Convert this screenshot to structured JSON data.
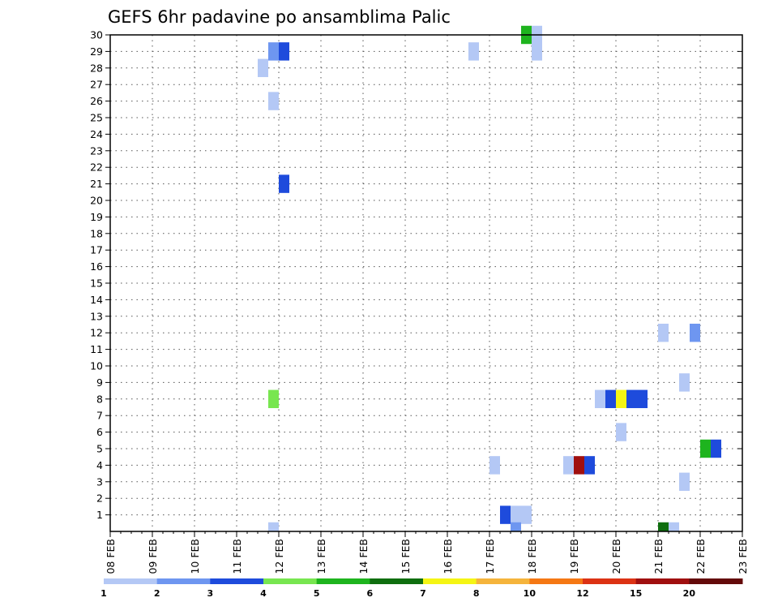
{
  "chart_data": {
    "type": "heatmap",
    "title": "GEFS 6hr padavine po ansamblima Palic",
    "x_ticks": [
      "08 FEB",
      "09 FEB",
      "10 FEB",
      "11 FEB",
      "12 FEB",
      "13 FEB",
      "14 FEB",
      "15 FEB",
      "16 FEB",
      "17 FEB",
      "18 FEB",
      "19 FEB",
      "20 FEB",
      "21 FEB",
      "22 FEB",
      "23 FEB"
    ],
    "y_ticks": [
      "1",
      "2",
      "3",
      "4",
      "5",
      "6",
      "7",
      "8",
      "9",
      "10",
      "11",
      "12",
      "13",
      "14",
      "15",
      "16",
      "17",
      "18",
      "19",
      "20",
      "21",
      "22",
      "23",
      "24",
      "25",
      "26",
      "27",
      "28",
      "29",
      "30"
    ],
    "y_range": [
      0,
      30
    ],
    "grid": true,
    "colorbar": {
      "colors": [
        "#b4c8f5",
        "#6e96f0",
        "#1e4bdc",
        "#78e650",
        "#1eb41e",
        "#0f6e0f",
        "#f5f514",
        "#f5b43c",
        "#f57814",
        "#dc3214",
        "#a00f0f",
        "#640a0a"
      ],
      "labels": [
        "1",
        "2",
        "3",
        "4",
        "5",
        "6",
        "7",
        "8",
        "10",
        "12",
        "15",
        "20"
      ]
    },
    "cells": [
      {
        "member": 30,
        "step": 39,
        "level": 4
      },
      {
        "member": 30,
        "step": 40,
        "level": 0
      },
      {
        "member": 29,
        "step": 15,
        "level": 1
      },
      {
        "member": 29,
        "step": 16,
        "level": 2
      },
      {
        "member": 29,
        "step": 34,
        "level": 0
      },
      {
        "member": 29,
        "step": 40,
        "level": 0
      },
      {
        "member": 28,
        "step": 14,
        "level": 0
      },
      {
        "member": 26,
        "step": 15,
        "level": 0
      },
      {
        "member": 21,
        "step": 16,
        "level": 2
      },
      {
        "member": 12,
        "step": 52,
        "level": 0
      },
      {
        "member": 12,
        "step": 55,
        "level": 1
      },
      {
        "member": 9,
        "step": 54,
        "level": 0
      },
      {
        "member": 8,
        "step": 15,
        "level": 3
      },
      {
        "member": 8,
        "step": 46,
        "level": 0
      },
      {
        "member": 8,
        "step": 47,
        "level": 2
      },
      {
        "member": 8,
        "step": 48,
        "level": 6
      },
      {
        "member": 8,
        "step": 49,
        "level": 2
      },
      {
        "member": 8,
        "step": 50,
        "level": 2
      },
      {
        "member": 6,
        "step": 48,
        "level": 0
      },
      {
        "member": 5,
        "step": 56,
        "level": 4
      },
      {
        "member": 5,
        "step": 57,
        "level": 2
      },
      {
        "member": 4,
        "step": 36,
        "level": 0
      },
      {
        "member": 4,
        "step": 43,
        "level": 0
      },
      {
        "member": 4,
        "step": 44,
        "level": 10
      },
      {
        "member": 4,
        "step": 45,
        "level": 2
      },
      {
        "member": 3,
        "step": 54,
        "level": 0
      },
      {
        "member": 1,
        "step": 37,
        "level": 2
      },
      {
        "member": 1,
        "step": 38,
        "level": 0
      },
      {
        "member": 1,
        "step": 39,
        "level": 0
      },
      {
        "member": 0,
        "step": 15,
        "level": 0
      },
      {
        "member": 0,
        "step": 38,
        "level": 1
      },
      {
        "member": 0,
        "step": 52,
        "level": 5
      },
      {
        "member": 0,
        "step": 53,
        "level": 0
      }
    ]
  }
}
